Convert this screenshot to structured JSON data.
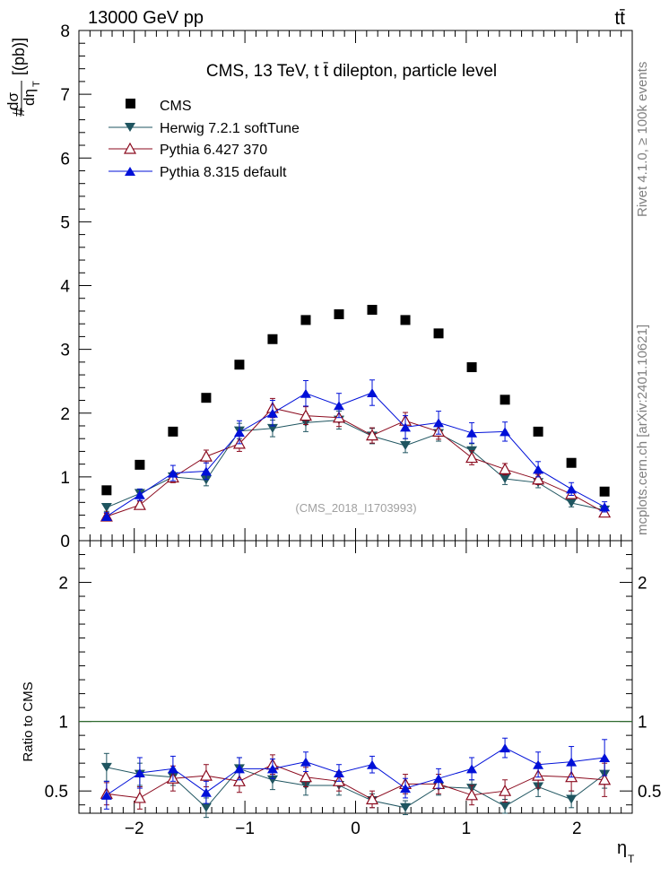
{
  "header": {
    "energy_label": "13000 GeV pp",
    "process_label": "tt̄",
    "side_rivet": "Rivet 4.1.0, ≥ 100k events",
    "side_mcplots": "mcplots.cern.ch [arXiv:2401.10621]"
  },
  "colors": {
    "cms": "#000000",
    "herwig": "#1f5560",
    "pythia6": "#8b0a1e",
    "pythia8": "#0010d8",
    "ref_line": "#2f6a2f"
  },
  "chart_data": [
    {
      "type": "scatter",
      "title": "CMS, 13 TeV, t t̄ dilepton, particle level",
      "watermark": "(CMS_2018_I1703993)",
      "ylabel": "#dσ/dη_T[(pb)]",
      "ylabel_parts": {
        "hash": "#",
        "num": "dσ",
        "den": "dη",
        "den_sub": "T",
        "units": "[(pb)]"
      },
      "xlabel": "η_T",
      "xlim": [
        -2.5,
        2.5
      ],
      "ylim": [
        0,
        8
      ],
      "yticks": [
        0,
        1,
        2,
        3,
        4,
        5,
        6,
        7,
        8
      ],
      "ytick_labels": [
        "0",
        "1",
        "2",
        "3",
        "4",
        "5",
        "6",
        "7",
        "8"
      ],
      "x": [
        -2.25,
        -1.95,
        -1.65,
        -1.35,
        -1.05,
        -0.75,
        -0.45,
        -0.15,
        0.15,
        0.45,
        0.75,
        1.05,
        1.35,
        1.65,
        1.95,
        2.25
      ],
      "series": [
        {
          "name": "CMS",
          "key": "cms",
          "marker": "square",
          "values": [
            0.79,
            1.19,
            1.71,
            2.24,
            2.76,
            3.16,
            3.46,
            3.55,
            3.62,
            3.46,
            3.25,
            2.72,
            2.21,
            1.71,
            1.22,
            0.77
          ],
          "errors": [
            0,
            0,
            0,
            0,
            0,
            0,
            0,
            0,
            0,
            0,
            0,
            0,
            0,
            0,
            0,
            0
          ]
        },
        {
          "name": "Herwig 7.2.1 softTune",
          "key": "herwig",
          "marker": "triangle-down",
          "values": [
            0.52,
            0.74,
            1.0,
            0.95,
            1.72,
            1.76,
            1.85,
            1.89,
            1.64,
            1.49,
            1.68,
            1.41,
            0.97,
            0.91,
            0.59,
            0.48
          ],
          "errors": [
            0.06,
            0.07,
            0.08,
            0.09,
            0.12,
            0.13,
            0.14,
            0.14,
            0.12,
            0.11,
            0.12,
            0.11,
            0.09,
            0.08,
            0.06,
            0.06
          ]
        },
        {
          "name": "Pythia 6.427 370",
          "key": "pythia6",
          "marker": "triangle-open",
          "values": [
            0.38,
            0.56,
            0.99,
            1.32,
            1.52,
            2.08,
            1.96,
            1.93,
            1.65,
            1.88,
            1.71,
            1.3,
            1.12,
            0.96,
            0.73,
            0.44
          ],
          "errors": [
            0.05,
            0.06,
            0.08,
            0.1,
            0.12,
            0.15,
            0.14,
            0.14,
            0.12,
            0.13,
            0.12,
            0.11,
            0.09,
            0.08,
            0.07,
            0.05
          ]
        },
        {
          "name": "Pythia 8.315 default",
          "key": "pythia8",
          "marker": "triangle-up",
          "values": [
            0.38,
            0.72,
            1.06,
            1.09,
            1.7,
            2.0,
            2.31,
            2.12,
            2.32,
            1.78,
            1.85,
            1.69,
            1.71,
            1.12,
            0.81,
            0.53
          ],
          "errors": [
            0.06,
            0.09,
            0.12,
            0.13,
            0.18,
            0.2,
            0.2,
            0.19,
            0.2,
            0.18,
            0.18,
            0.16,
            0.15,
            0.12,
            0.1,
            0.08
          ]
        }
      ]
    },
    {
      "type": "scatter",
      "title": "",
      "ylabel": "Ratio to CMS",
      "xlabel": "η_T",
      "xlim": [
        -2.5,
        2.5
      ],
      "ylim": [
        0.34,
        2.3
      ],
      "yticks": [
        0.5,
        1,
        2
      ],
      "ytick_labels": [
        "0.5",
        "1",
        "2"
      ],
      "xticks": [
        -2,
        -1,
        0,
        1,
        2
      ],
      "xtick_labels": [
        "−2",
        "−1",
        "0",
        "1",
        "2"
      ],
      "reference_line": 1,
      "x": [
        -2.25,
        -1.95,
        -1.65,
        -1.35,
        -1.05,
        -0.75,
        -0.45,
        -0.15,
        0.15,
        0.45,
        0.75,
        1.05,
        1.35,
        1.65,
        1.95,
        2.25
      ],
      "series": [
        {
          "name": "Herwig 7.2.1 softTune",
          "key": "herwig",
          "marker": "triangle-down",
          "values": [
            0.67,
            0.62,
            0.6,
            0.38,
            0.66,
            0.58,
            0.54,
            0.54,
            0.43,
            0.38,
            0.53,
            0.52,
            0.39,
            0.53,
            0.44,
            0.62
          ],
          "errors": [
            0.1,
            0.08,
            0.06,
            0.07,
            0.08,
            0.07,
            0.07,
            0.07,
            0.05,
            0.05,
            0.06,
            0.06,
            0.05,
            0.07,
            0.06,
            0.1
          ]
        },
        {
          "name": "Pythia 6.427 370",
          "key": "pythia6",
          "marker": "triangle-open",
          "values": [
            0.48,
            0.45,
            0.59,
            0.61,
            0.57,
            0.69,
            0.6,
            0.57,
            0.44,
            0.55,
            0.55,
            0.47,
            0.5,
            0.61,
            0.6,
            0.58
          ],
          "errors": [
            0.08,
            0.08,
            0.09,
            0.08,
            0.08,
            0.07,
            0.07,
            0.07,
            0.06,
            0.07,
            0.07,
            0.07,
            0.08,
            0.09,
            0.1,
            0.12
          ]
        },
        {
          "name": "Pythia 8.315 default",
          "key": "pythia8",
          "marker": "triangle-up",
          "values": [
            0.47,
            0.63,
            0.66,
            0.49,
            0.66,
            0.66,
            0.71,
            0.63,
            0.69,
            0.52,
            0.59,
            0.66,
            0.81,
            0.69,
            0.71,
            0.74
          ],
          "errors": [
            0.1,
            0.11,
            0.09,
            0.08,
            0.08,
            0.07,
            0.07,
            0.06,
            0.06,
            0.07,
            0.07,
            0.08,
            0.07,
            0.09,
            0.11,
            0.13
          ]
        }
      ]
    }
  ]
}
